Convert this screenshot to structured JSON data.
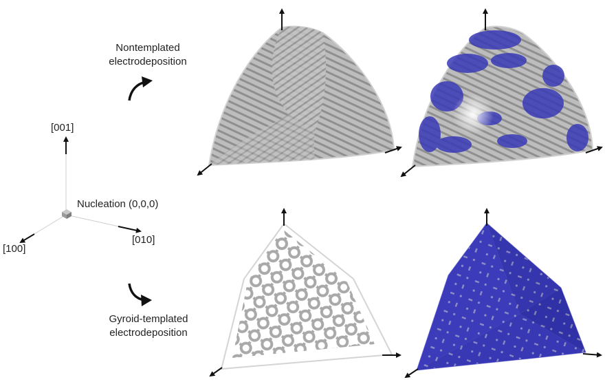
{
  "top_caption": [
    "Nontemplated",
    "electrodeposition"
  ],
  "bottom_caption": [
    "Gyroid-templated",
    "electrodeposition"
  ],
  "axes": {
    "z": "[001]",
    "x": "[100]",
    "y": "[010]",
    "origin": "Nucleation (0,0,0)"
  },
  "colors": {
    "deposit_gray": "#b4b4b4",
    "deposit_dark": "#8a8a8a",
    "deposit_blue": "#3a3ab8",
    "outline": "#d8d8d8"
  }
}
